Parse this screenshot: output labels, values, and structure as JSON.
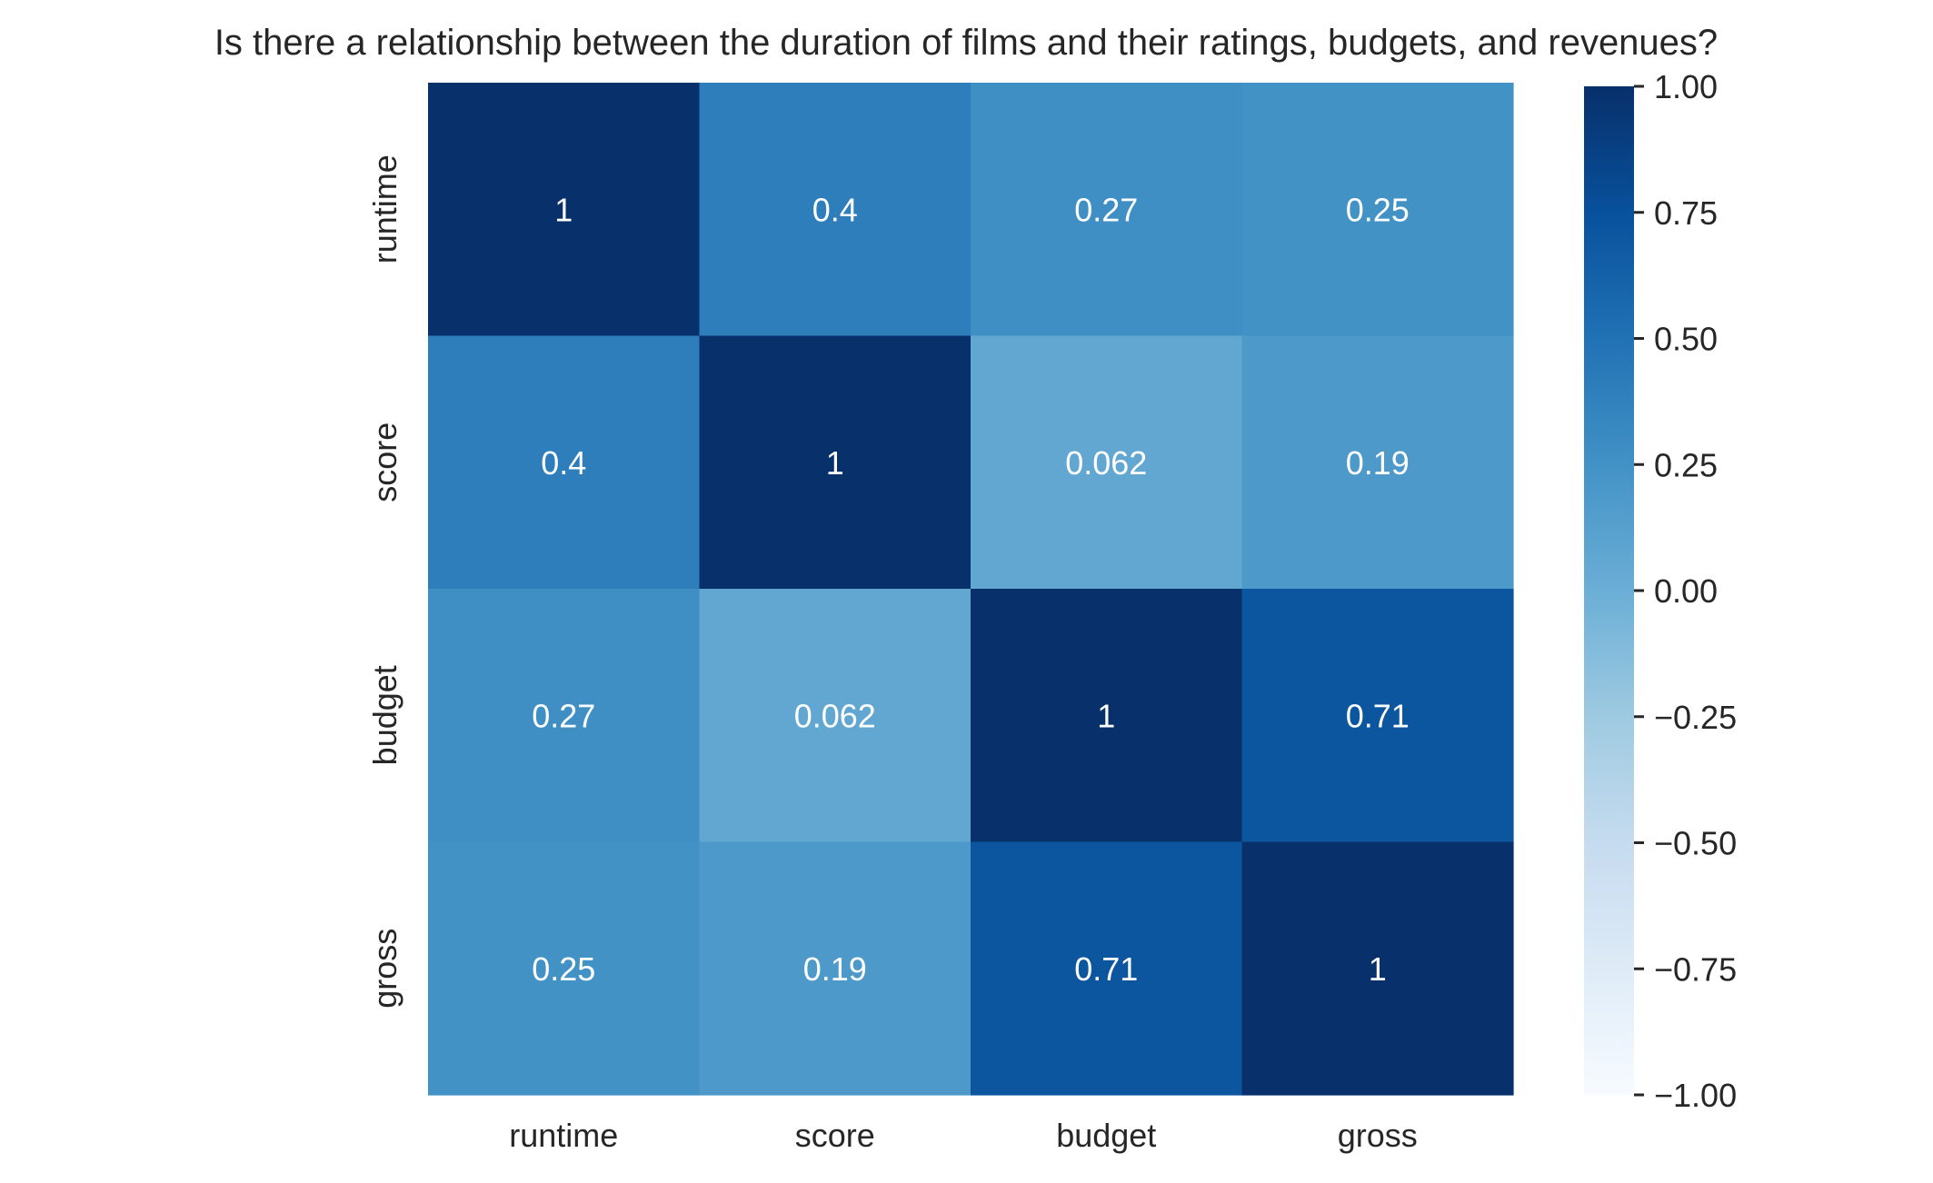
{
  "chart_data": {
    "type": "heatmap",
    "title": "Is there a relationship between the duration of films and their ratings, budgets, and revenues?",
    "x_categories": [
      "runtime",
      "score",
      "budget",
      "gross"
    ],
    "y_categories": [
      "runtime",
      "score",
      "budget",
      "gross"
    ],
    "values": [
      [
        1,
        0.4,
        0.27,
        0.25
      ],
      [
        0.4,
        1,
        0.062,
        0.19
      ],
      [
        0.27,
        0.062,
        1,
        0.71
      ],
      [
        0.25,
        0.19,
        0.71,
        1
      ]
    ],
    "annotations": [
      [
        "1",
        "0.4",
        "0.27",
        "0.25"
      ],
      [
        "0.4",
        "1",
        "0.062",
        "0.19"
      ],
      [
        "0.27",
        "0.062",
        "1",
        "0.71"
      ],
      [
        "0.25",
        "0.19",
        "0.71",
        "1"
      ]
    ],
    "colormap": "Blues",
    "colorbar": {
      "vmin": -1,
      "vmax": 1,
      "ticks": [
        1,
        0.75,
        0.5,
        0.25,
        0,
        -0.25,
        -0.5,
        -0.75,
        -1
      ],
      "tick_labels": [
        "1.00",
        "0.75",
        "0.50",
        "0.25",
        "0.00",
        "−0.25",
        "−0.50",
        "−0.75",
        "−1.00"
      ]
    },
    "grid": false,
    "colors": {
      "annotation_text": "#ffffff",
      "axis_text": "#262626"
    }
  }
}
